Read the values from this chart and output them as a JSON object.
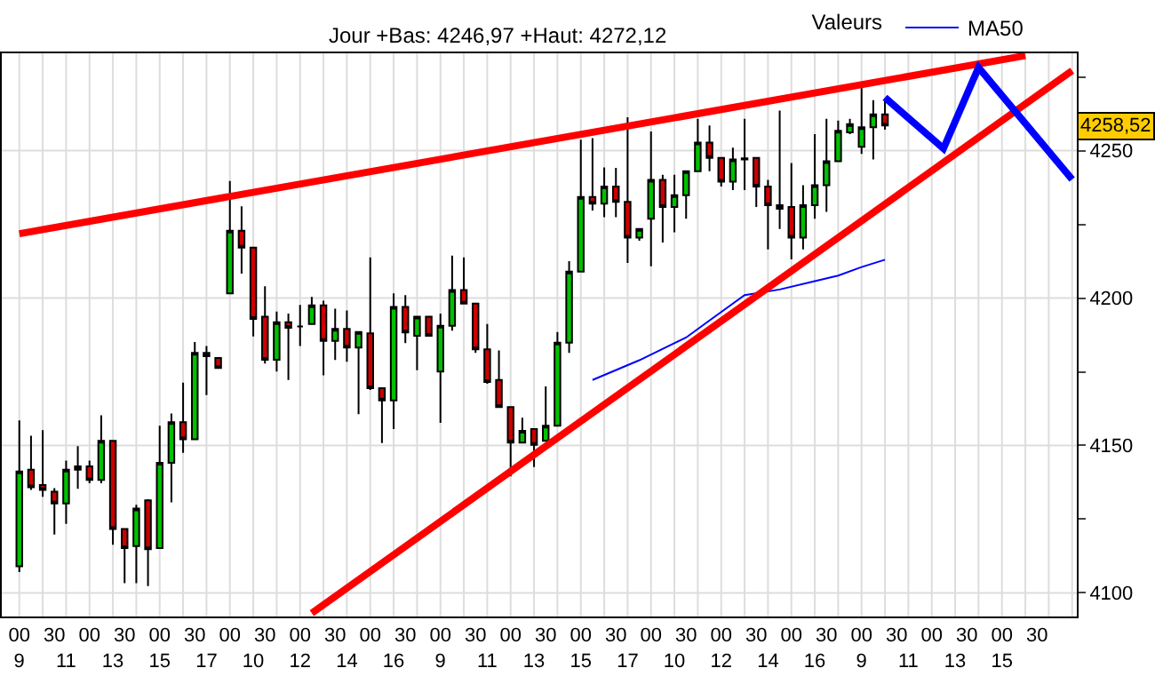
{
  "chart_data": {
    "type": "candlestick",
    "legend_title": "Valeurs",
    "legend": "top",
    "grid": true,
    "marker": "none",
    "line_style": "solid",
    "annotations": [
      "Jour +Bas: 4246,97 +Haut: 4272,12",
      {
        "text": "4258,52",
        "y": 4258.52
      }
    ],
    "categories": [
      "00\n9",
      null,
      null,
      "30",
      "\n11",
      null,
      "00",
      null,
      "\n13",
      "30",
      null,
      null,
      "00\n15",
      null,
      null,
      "30",
      "\n17",
      null,
      "00",
      null,
      "\n10",
      "30",
      null,
      null,
      "00\n12",
      null,
      null,
      "30",
      "\n14",
      null,
      "00",
      null,
      "\n16",
      "30",
      null,
      null,
      "00\n9",
      null,
      null,
      "30",
      "\n11",
      null,
      "00",
      null,
      "\n13",
      "30",
      null,
      null,
      "00\n15",
      null,
      null,
      "30",
      "\n17",
      null,
      "00",
      null,
      "\n10",
      "30",
      null,
      null,
      "00\n12",
      null,
      null,
      "30",
      "\n14",
      null,
      "00",
      null,
      "\n16",
      "30",
      null,
      null,
      "00\n9",
      null,
      null,
      "30",
      "\n11",
      null,
      "00",
      null,
      "\n13",
      "30",
      null,
      null,
      "00\n15",
      null,
      null,
      "30",
      null,
      null,
      null
    ],
    "ohlc": [
      [
        4109.0,
        4158.5,
        4107.1,
        4141.2
      ],
      [
        4141.8,
        4153.3,
        4134.9,
        4135.8
      ],
      [
        4136.6,
        4155.2,
        4132.6,
        4134.9
      ],
      [
        4134.3,
        4135.5,
        4119.8,
        4130.3
      ],
      [
        4130.3,
        4144.9,
        4123.4,
        4141.8
      ],
      [
        4141.8,
        4149.8,
        4135.3,
        4142.9
      ],
      [
        4142.9,
        4144.9,
        4137.2,
        4138.3
      ],
      [
        4138.3,
        4160.2,
        4137.2,
        4151.6
      ],
      [
        4151.6,
        4151.6,
        4116.3,
        4121.7
      ],
      [
        4121.7,
        4121.7,
        4103.3,
        4115.2
      ],
      [
        4115.9,
        4129.9,
        4103.3,
        4128.6
      ],
      [
        4131.4,
        4131.8,
        4102.3,
        4114.8
      ],
      [
        4115.2,
        4156.7,
        4115.2,
        4144.1
      ],
      [
        4144.1,
        4160.8,
        4130.7,
        4157.9
      ],
      [
        4157.9,
        4171.3,
        4147.5,
        4152.1
      ],
      [
        4152.1,
        4185.1,
        4152.1,
        4181.4
      ],
      [
        4181.4,
        4183.7,
        4167.1,
        4180.3
      ],
      [
        4179.7,
        4179.7,
        4176.3,
        4176.3
      ],
      [
        4201.6,
        4239.7,
        4201.6,
        4222.8
      ],
      [
        4222.8,
        4231.1,
        4208.3,
        4217.1
      ],
      [
        4217.1,
        4217.1,
        4187.0,
        4192.9
      ],
      [
        4193.7,
        4204.0,
        4177.8,
        4179.1
      ],
      [
        4179.1,
        4195.4,
        4175.1,
        4191.8
      ],
      [
        4191.8,
        4194.7,
        4172.2,
        4189.9
      ],
      [
        4190.4,
        4197.7,
        4183.7,
        4190.4
      ],
      [
        4191.2,
        4200.4,
        4191.2,
        4197.5
      ],
      [
        4197.5,
        4199.1,
        4173.8,
        4185.5
      ],
      [
        4185.5,
        4196.4,
        4179.0,
        4189.5
      ],
      [
        4189.5,
        4195.8,
        4178.4,
        4183.2
      ],
      [
        4183.2,
        4188.5,
        4160.6,
        4188.5
      ],
      [
        4188.0,
        4213.8,
        4168.8,
        4169.4
      ],
      [
        4169.4,
        4169.4,
        4150.8,
        4165.3
      ],
      [
        4165.3,
        4201.6,
        4155.6,
        4197.0
      ],
      [
        4197.0,
        4201.0,
        4184.7,
        4188.3
      ],
      [
        4187.2,
        4193.7,
        4175.5,
        4193.7
      ],
      [
        4193.7,
        4193.7,
        4187.2,
        4187.2
      ],
      [
        4175.1,
        4194.7,
        4157.7,
        4190.6
      ],
      [
        4190.6,
        4214.4,
        4188.9,
        4202.7
      ],
      [
        4202.7,
        4213.8,
        4198.1,
        4198.1
      ],
      [
        4198.1,
        4198.1,
        4181.4,
        4182.6
      ],
      [
        4182.6,
        4191.2,
        4170.9,
        4171.5
      ],
      [
        4172.2,
        4182.2,
        4163.0,
        4163.0
      ],
      [
        4163.0,
        4163.0,
        4139.5,
        4151.0
      ],
      [
        4151.0,
        4159.4,
        4151.0,
        4155.0
      ],
      [
        4155.6,
        4155.6,
        4142.7,
        4150.2
      ],
      [
        4151.6,
        4170.0,
        4151.6,
        4156.7
      ],
      [
        4156.7,
        4188.5,
        4156.7,
        4184.9
      ],
      [
        4184.9,
        4212.5,
        4181.4,
        4209.0
      ],
      [
        4209.0,
        4253.7,
        4209.0,
        4234.3
      ],
      [
        4234.3,
        4254.2,
        4229.7,
        4232.0
      ],
      [
        4232.0,
        4244.3,
        4227.4,
        4237.8
      ],
      [
        4237.8,
        4244.1,
        4227.4,
        4232.6
      ],
      [
        4232.6,
        4261.3,
        4211.9,
        4220.5
      ],
      [
        4220.5,
        4223.4,
        4219.4,
        4223.4
      ],
      [
        4226.9,
        4256.5,
        4210.8,
        4240.1
      ],
      [
        4240.1,
        4241.8,
        4218.8,
        4230.9
      ],
      [
        4230.9,
        4241.8,
        4222.3,
        4234.9
      ],
      [
        4234.9,
        4243.0,
        4226.9,
        4243.0
      ],
      [
        4243.0,
        4260.8,
        4243.0,
        4252.7
      ],
      [
        4252.7,
        4258.5,
        4243.0,
        4247.5
      ],
      [
        4247.5,
        4247.5,
        4237.8,
        4239.5
      ],
      [
        4239.5,
        4251.0,
        4236.6,
        4247.0
      ],
      [
        4247.0,
        4260.8,
        4236.6,
        4247.4
      ],
      [
        4247.5,
        4247.5,
        4230.9,
        4237.8
      ],
      [
        4237.8,
        4240.1,
        4216.5,
        4231.5
      ],
      [
        4231.5,
        4263.6,
        4223.4,
        4230.3
      ],
      [
        4230.9,
        4245.8,
        4213.1,
        4220.5
      ],
      [
        4220.5,
        4238.3,
        4216.5,
        4231.5
      ],
      [
        4231.5,
        4255.6,
        4226.9,
        4238.3
      ],
      [
        4238.3,
        4260.8,
        4229.2,
        4246.4
      ],
      [
        4246.4,
        4260.2,
        4246.4,
        4256.7
      ],
      [
        4256.2,
        4260.8,
        4255.6,
        4259.0
      ],
      [
        4251.3,
        4272.1,
        4248.9,
        4257.9
      ],
      [
        4257.9,
        4267.1,
        4247.0,
        4262.3
      ],
      [
        4262.3,
        4267.1,
        4257.1,
        4258.5
      ],
      null,
      null,
      null,
      null,
      null,
      null,
      null,
      null,
      null,
      null,
      null,
      null,
      null,
      null,
      null,
      null
    ],
    "series": [
      {
        "type": "line",
        "name": "MA50",
        "color": "#0000ff",
        "values": [
          null,
          null,
          null,
          null,
          null,
          null,
          null,
          null,
          null,
          null,
          null,
          null,
          null,
          null,
          null,
          null,
          null,
          null,
          null,
          null,
          null,
          null,
          null,
          null,
          null,
          null,
          null,
          null,
          null,
          null,
          null,
          null,
          null,
          null,
          null,
          null,
          null,
          null,
          null,
          null,
          null,
          null,
          null,
          null,
          null,
          null,
          null,
          null,
          null,
          4172.2,
          null,
          null,
          null,
          4178.9,
          null,
          null,
          null,
          4186.6,
          null,
          4192.4,
          null,
          null,
          4201.0,
          null,
          null,
          4202.9,
          null,
          null,
          4205.7,
          null,
          4207.6,
          null,
          4210.5,
          null,
          4213.0,
          null,
          null,
          null,
          null,
          null,
          null,
          null,
          null,
          null,
          null,
          null,
          null,
          null,
          null,
          null,
          null
        ]
      },
      {
        "type": "line",
        "color": "#ff0000",
        "values": [
          4221.8,
          null,
          null,
          null,
          null,
          null,
          null,
          null,
          null,
          null,
          null,
          null,
          null,
          null,
          null,
          null,
          null,
          null,
          null,
          null,
          null,
          null,
          null,
          null,
          null,
          null,
          null,
          null,
          null,
          null,
          null,
          null,
          null,
          null,
          null,
          null,
          null,
          null,
          null,
          null,
          null,
          null,
          null,
          null,
          null,
          null,
          null,
          null,
          null,
          null,
          null,
          null,
          null,
          null,
          null,
          null,
          null,
          null,
          null,
          null,
          null,
          null,
          null,
          null,
          null,
          null,
          null,
          null,
          null,
          null,
          null,
          null,
          null,
          null,
          null,
          null,
          null,
          null,
          null,
          null,
          null,
          null,
          null,
          null,
          null,
          null,
          4282.2,
          null,
          null,
          null,
          null
        ]
      },
      {
        "type": "line",
        "color": "#ff0000",
        "values": [
          null,
          null,
          null,
          null,
          null,
          null,
          null,
          null,
          null,
          null,
          null,
          null,
          null,
          null,
          null,
          null,
          null,
          null,
          null,
          null,
          null,
          null,
          null,
          null,
          null,
          4093.1,
          null,
          null,
          null,
          null,
          null,
          null,
          null,
          null,
          null,
          null,
          null,
          null,
          null,
          null,
          null,
          null,
          null,
          null,
          null,
          null,
          null,
          null,
          null,
          null,
          null,
          null,
          null,
          null,
          null,
          null,
          null,
          null,
          null,
          null,
          null,
          null,
          null,
          null,
          null,
          null,
          null,
          null,
          null,
          null,
          null,
          null,
          null,
          null,
          null,
          null,
          null,
          null,
          null,
          null,
          null,
          null,
          null,
          null,
          null,
          null,
          null,
          null,
          null,
          null,
          4277.1
        ]
      },
      {
        "type": "line",
        "color": "#0000ff",
        "values": [
          null,
          null,
          null,
          null,
          null,
          null,
          null,
          null,
          null,
          null,
          null,
          null,
          null,
          null,
          null,
          null,
          null,
          null,
          null,
          null,
          null,
          null,
          null,
          null,
          null,
          null,
          null,
          null,
          null,
          null,
          null,
          null,
          null,
          null,
          null,
          null,
          null,
          null,
          null,
          null,
          null,
          null,
          null,
          null,
          null,
          null,
          null,
          null,
          null,
          null,
          null,
          null,
          null,
          null,
          null,
          null,
          null,
          null,
          null,
          null,
          null,
          null,
          null,
          null,
          null,
          null,
          null,
          null,
          null,
          null,
          null,
          null,
          null,
          null,
          4268.0,
          null,
          null,
          null,
          null,
          4250.7,
          null,
          null,
          4278.2,
          null,
          null,
          null,
          null,
          null,
          null,
          null,
          4240.2
        ]
      }
    ],
    "ylim": [
      4092,
      4283
    ],
    "yticks": [
      4100,
      {
        "value": 4125,
        "label": null
      },
      4150,
      {
        "value": 4175,
        "label": null
      },
      4200,
      {
        "value": 4225,
        "label": null
      },
      4250,
      {
        "value": 4275,
        "label": null
      }
    ]
  }
}
